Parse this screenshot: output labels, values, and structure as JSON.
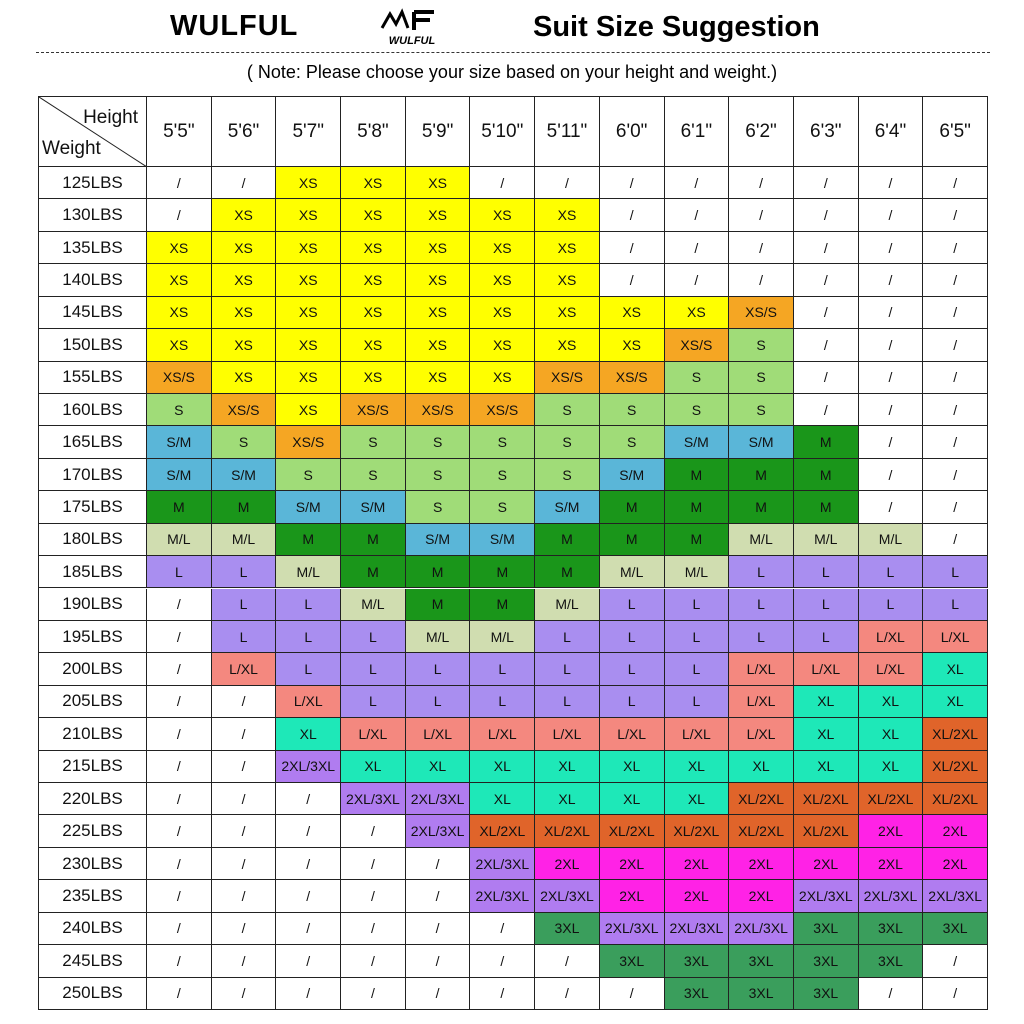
{
  "header": {
    "brand": "WULFUL",
    "logo_text": "WULFUL",
    "title": "Suit Size Suggestion",
    "note": "( Note: Please choose your size based on your height and weight.)"
  },
  "table": {
    "corner": {
      "top": "Height",
      "bottom": "Weight"
    },
    "columns": [
      "5'5\"",
      "5'6\"",
      "5'7\"",
      "5'8\"",
      "5'9\"",
      "5'10\"",
      "5'11\"",
      "6'0\"",
      "6'1\"",
      "6'2\"",
      "6'3\"",
      "6'4\"",
      "6'5\""
    ],
    "rows": [
      {
        "weight": "125LBS",
        "cells": [
          "/",
          "/",
          "XS",
          "XS",
          "XS",
          "/",
          "/",
          "/",
          "/",
          "/",
          "/",
          "/",
          "/"
        ]
      },
      {
        "weight": "130LBS",
        "cells": [
          "/",
          "XS",
          "XS",
          "XS",
          "XS",
          "XS",
          "XS",
          "/",
          "/",
          "/",
          "/",
          "/",
          "/"
        ]
      },
      {
        "weight": "135LBS",
        "cells": [
          "XS",
          "XS",
          "XS",
          "XS",
          "XS",
          "XS",
          "XS",
          "/",
          "/",
          "/",
          "/",
          "/",
          "/"
        ]
      },
      {
        "weight": "140LBS",
        "cells": [
          "XS",
          "XS",
          "XS",
          "XS",
          "XS",
          "XS",
          "XS",
          "/",
          "/",
          "/",
          "/",
          "/",
          "/"
        ]
      },
      {
        "weight": "145LBS",
        "cells": [
          "XS",
          "XS",
          "XS",
          "XS",
          "XS",
          "XS",
          "XS",
          "XS",
          "XS",
          "XS/S",
          "/",
          "/",
          "/"
        ]
      },
      {
        "weight": "150LBS",
        "cells": [
          "XS",
          "XS",
          "XS",
          "XS",
          "XS",
          "XS",
          "XS",
          "XS",
          "XS/S",
          "S",
          "/",
          "/",
          "/"
        ]
      },
      {
        "weight": "155LBS",
        "cells": [
          "XS/S",
          "XS",
          "XS",
          "XS",
          "XS",
          "XS",
          "XS/S",
          "XS/S",
          "S",
          "S",
          "/",
          "/",
          "/"
        ]
      },
      {
        "weight": "160LBS",
        "cells": [
          "S",
          "XS/S",
          "XS",
          "XS/S",
          "XS/S",
          "XS/S",
          "S",
          "S",
          "S",
          "S",
          "/",
          "/",
          "/"
        ]
      },
      {
        "weight": "165LBS",
        "cells": [
          "S/M",
          "S",
          "XS/S",
          "S",
          "S",
          "S",
          "S",
          "S",
          "S/M",
          "S/M",
          "M",
          "/",
          "/"
        ]
      },
      {
        "weight": "170LBS",
        "cells": [
          "S/M",
          "S/M",
          "S",
          "S",
          "S",
          "S",
          "S",
          "S/M",
          "M",
          "M",
          "M",
          "/",
          "/"
        ]
      },
      {
        "weight": "175LBS",
        "cells": [
          "M",
          "M",
          "S/M",
          "S/M",
          "S",
          "S",
          "S/M",
          "M",
          "M",
          "M",
          "M",
          "/",
          "/"
        ]
      },
      {
        "weight": "180LBS",
        "cells": [
          "M/L",
          "M/L",
          "M",
          "M",
          "S/M",
          "S/M",
          "M",
          "M",
          "M",
          "M/L",
          "M/L",
          "M/L",
          "/"
        ]
      },
      {
        "weight": "185LBS",
        "cells": [
          "L",
          "L",
          "M/L",
          "M",
          "M",
          "M",
          "M",
          "M/L",
          "M/L",
          "L",
          "L",
          "L",
          "L"
        ]
      },
      {
        "weight": "190LBS",
        "cells": [
          "/",
          "L",
          "L",
          "M/L",
          "M",
          "M",
          "M/L",
          "L",
          "L",
          "L",
          "L",
          "L",
          "L"
        ]
      },
      {
        "weight": "195LBS",
        "cells": [
          "/",
          "L",
          "L",
          "L",
          "M/L",
          "M/L",
          "L",
          "L",
          "L",
          "L",
          "L",
          "L/XL",
          "L/XL"
        ]
      },
      {
        "weight": "200LBS",
        "cells": [
          "/",
          "L/XL",
          "L",
          "L",
          "L",
          "L",
          "L",
          "L",
          "L",
          "L/XL",
          "L/XL",
          "L/XL",
          "XL"
        ]
      },
      {
        "weight": "205LBS",
        "cells": [
          "/",
          "/",
          "L/XL",
          "L",
          "L",
          "L",
          "L",
          "L",
          "L",
          "L/XL",
          "XL",
          "XL",
          "XL"
        ]
      },
      {
        "weight": "210LBS",
        "cells": [
          "/",
          "/",
          "XL",
          "L/XL",
          "L/XL",
          "L/XL",
          "L/XL",
          "L/XL",
          "L/XL",
          "L/XL",
          "XL",
          "XL",
          "XL/2XL"
        ]
      },
      {
        "weight": "215LBS",
        "cells": [
          "/",
          "/",
          "2XL/3XL",
          "XL",
          "XL",
          "XL",
          "XL",
          "XL",
          "XL",
          "XL",
          "XL",
          "XL",
          "XL/2XL"
        ]
      },
      {
        "weight": "220LBS",
        "cells": [
          "/",
          "/",
          "/",
          "2XL/3XL",
          "2XL/3XL",
          "XL",
          "XL",
          "XL",
          "XL",
          "XL/2XL",
          "XL/2XL",
          "XL/2XL",
          "XL/2XL"
        ]
      },
      {
        "weight": "225LBS",
        "cells": [
          "/",
          "/",
          "/",
          "/",
          "2XL/3XL",
          "XL/2XL",
          "XL/2XL",
          "XL/2XL",
          "XL/2XL",
          "XL/2XL",
          "XL/2XL",
          "2XL",
          "2XL"
        ]
      },
      {
        "weight": "230LBS",
        "cells": [
          "/",
          "/",
          "/",
          "/",
          "/",
          "2XL/3XL",
          "2XL",
          "2XL",
          "2XL",
          "2XL",
          "2XL",
          "2XL",
          "2XL"
        ]
      },
      {
        "weight": "235LBS",
        "cells": [
          "/",
          "/",
          "/",
          "/",
          "/",
          "2XL/3XL",
          "2XL/3XL",
          "2XL",
          "2XL",
          "2XL",
          "2XL/3XL",
          "2XL/3XL",
          "2XL/3XL"
        ]
      },
      {
        "weight": "240LBS",
        "cells": [
          "/",
          "/",
          "/",
          "/",
          "/",
          "/",
          "3XL",
          "2XL/3XL",
          "2XL/3XL",
          "2XL/3XL",
          "3XL",
          "3XL",
          "3XL"
        ]
      },
      {
        "weight": "245LBS",
        "cells": [
          "/",
          "/",
          "/",
          "/",
          "/",
          "/",
          "/",
          "3XL",
          "3XL",
          "3XL",
          "3XL",
          "3XL",
          "/"
        ]
      },
      {
        "weight": "250LBS",
        "cells": [
          "/",
          "/",
          "/",
          "/",
          "/",
          "/",
          "/",
          "/",
          "3XL",
          "3XL",
          "3XL",
          "/",
          "/"
        ]
      }
    ]
  },
  "cell_colors": {
    "XS": "#ffff00",
    "XS/S": "#f5a623",
    "S": "#a0dc78",
    "S/M": "#5ab6d8",
    "M": "#1a961a",
    "M/L": "#d0ddb0",
    "L": "#a98ef0",
    "L/XL": "#f4887f",
    "XL": "#1ee8b8",
    "XL/2XL": "#e0642a",
    "2XL": "#ff22e6",
    "2XL/3XL": "#b07cf0",
    "3XL": "#3a9e5c"
  }
}
